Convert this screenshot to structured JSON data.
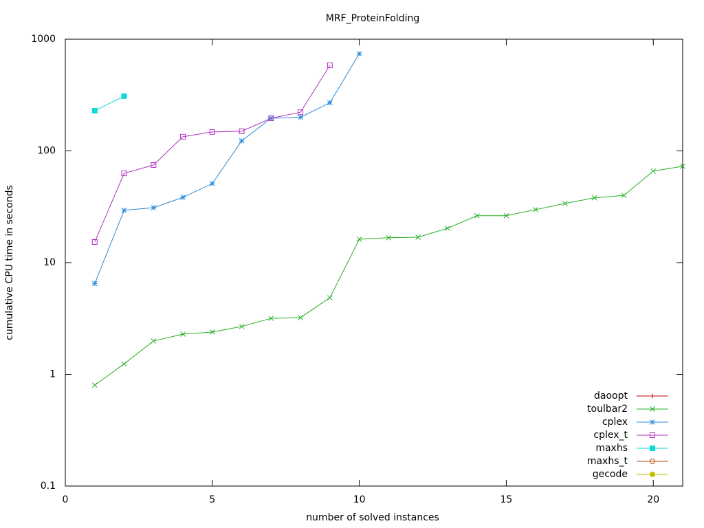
{
  "chart_data": {
    "type": "line",
    "title": "MRF_ProteinFolding",
    "x_label": "number of solved instances",
    "y_label": "cumulative CPU time in seconds",
    "xlim": [
      0,
      21
    ],
    "xticks": [
      0,
      5,
      10,
      15,
      20
    ],
    "ylim": [
      0.1,
      1000
    ],
    "yticks": [
      0.1,
      1,
      10,
      100,
      1000
    ],
    "y_scale": "log",
    "legend": "bottom-right",
    "series": [
      {
        "name": "daoopt",
        "color": "#c00000",
        "marker": "plus",
        "x": [],
        "values": []
      },
      {
        "name": "toulbar2",
        "color": "#22b022",
        "marker": "cross",
        "x": [
          1,
          2,
          3,
          4,
          5,
          6,
          7,
          8,
          9,
          10,
          11,
          12,
          13,
          14,
          15,
          16,
          17,
          18,
          19,
          20,
          21
        ],
        "values": [
          0.8,
          1.24,
          1.99,
          2.29,
          2.39,
          2.68,
          3.17,
          3.22,
          4.85,
          16.2,
          16.7,
          16.9,
          20.3,
          26.3,
          26.3,
          29.8,
          33.9,
          38,
          40,
          66,
          72.8
        ]
      },
      {
        "name": "cplex",
        "color": "#2a8ad8",
        "marker": "star",
        "x": [
          1,
          2,
          3,
          4,
          5,
          6,
          7,
          8,
          9,
          10
        ],
        "values": [
          6.5,
          29.4,
          31,
          38.4,
          51,
          123,
          196,
          200,
          270,
          741
        ]
      },
      {
        "name": "cplex_t",
        "color": "#b030c0",
        "marker": "square-open",
        "x": [
          1,
          2,
          3,
          4,
          5,
          6,
          7,
          8,
          9
        ],
        "values": [
          15.3,
          63,
          74.8,
          134,
          148,
          150,
          196,
          222,
          584
        ]
      },
      {
        "name": "maxhs",
        "color": "#10d8d8",
        "marker": "square",
        "x": [
          1,
          2
        ],
        "values": [
          229,
          309
        ]
      },
      {
        "name": "maxhs_t",
        "color": "#b05010",
        "marker": "circle-open",
        "x": [],
        "values": []
      },
      {
        "name": "gecode",
        "color": "#c0c000",
        "marker": "circle",
        "x": [],
        "values": []
      }
    ]
  }
}
